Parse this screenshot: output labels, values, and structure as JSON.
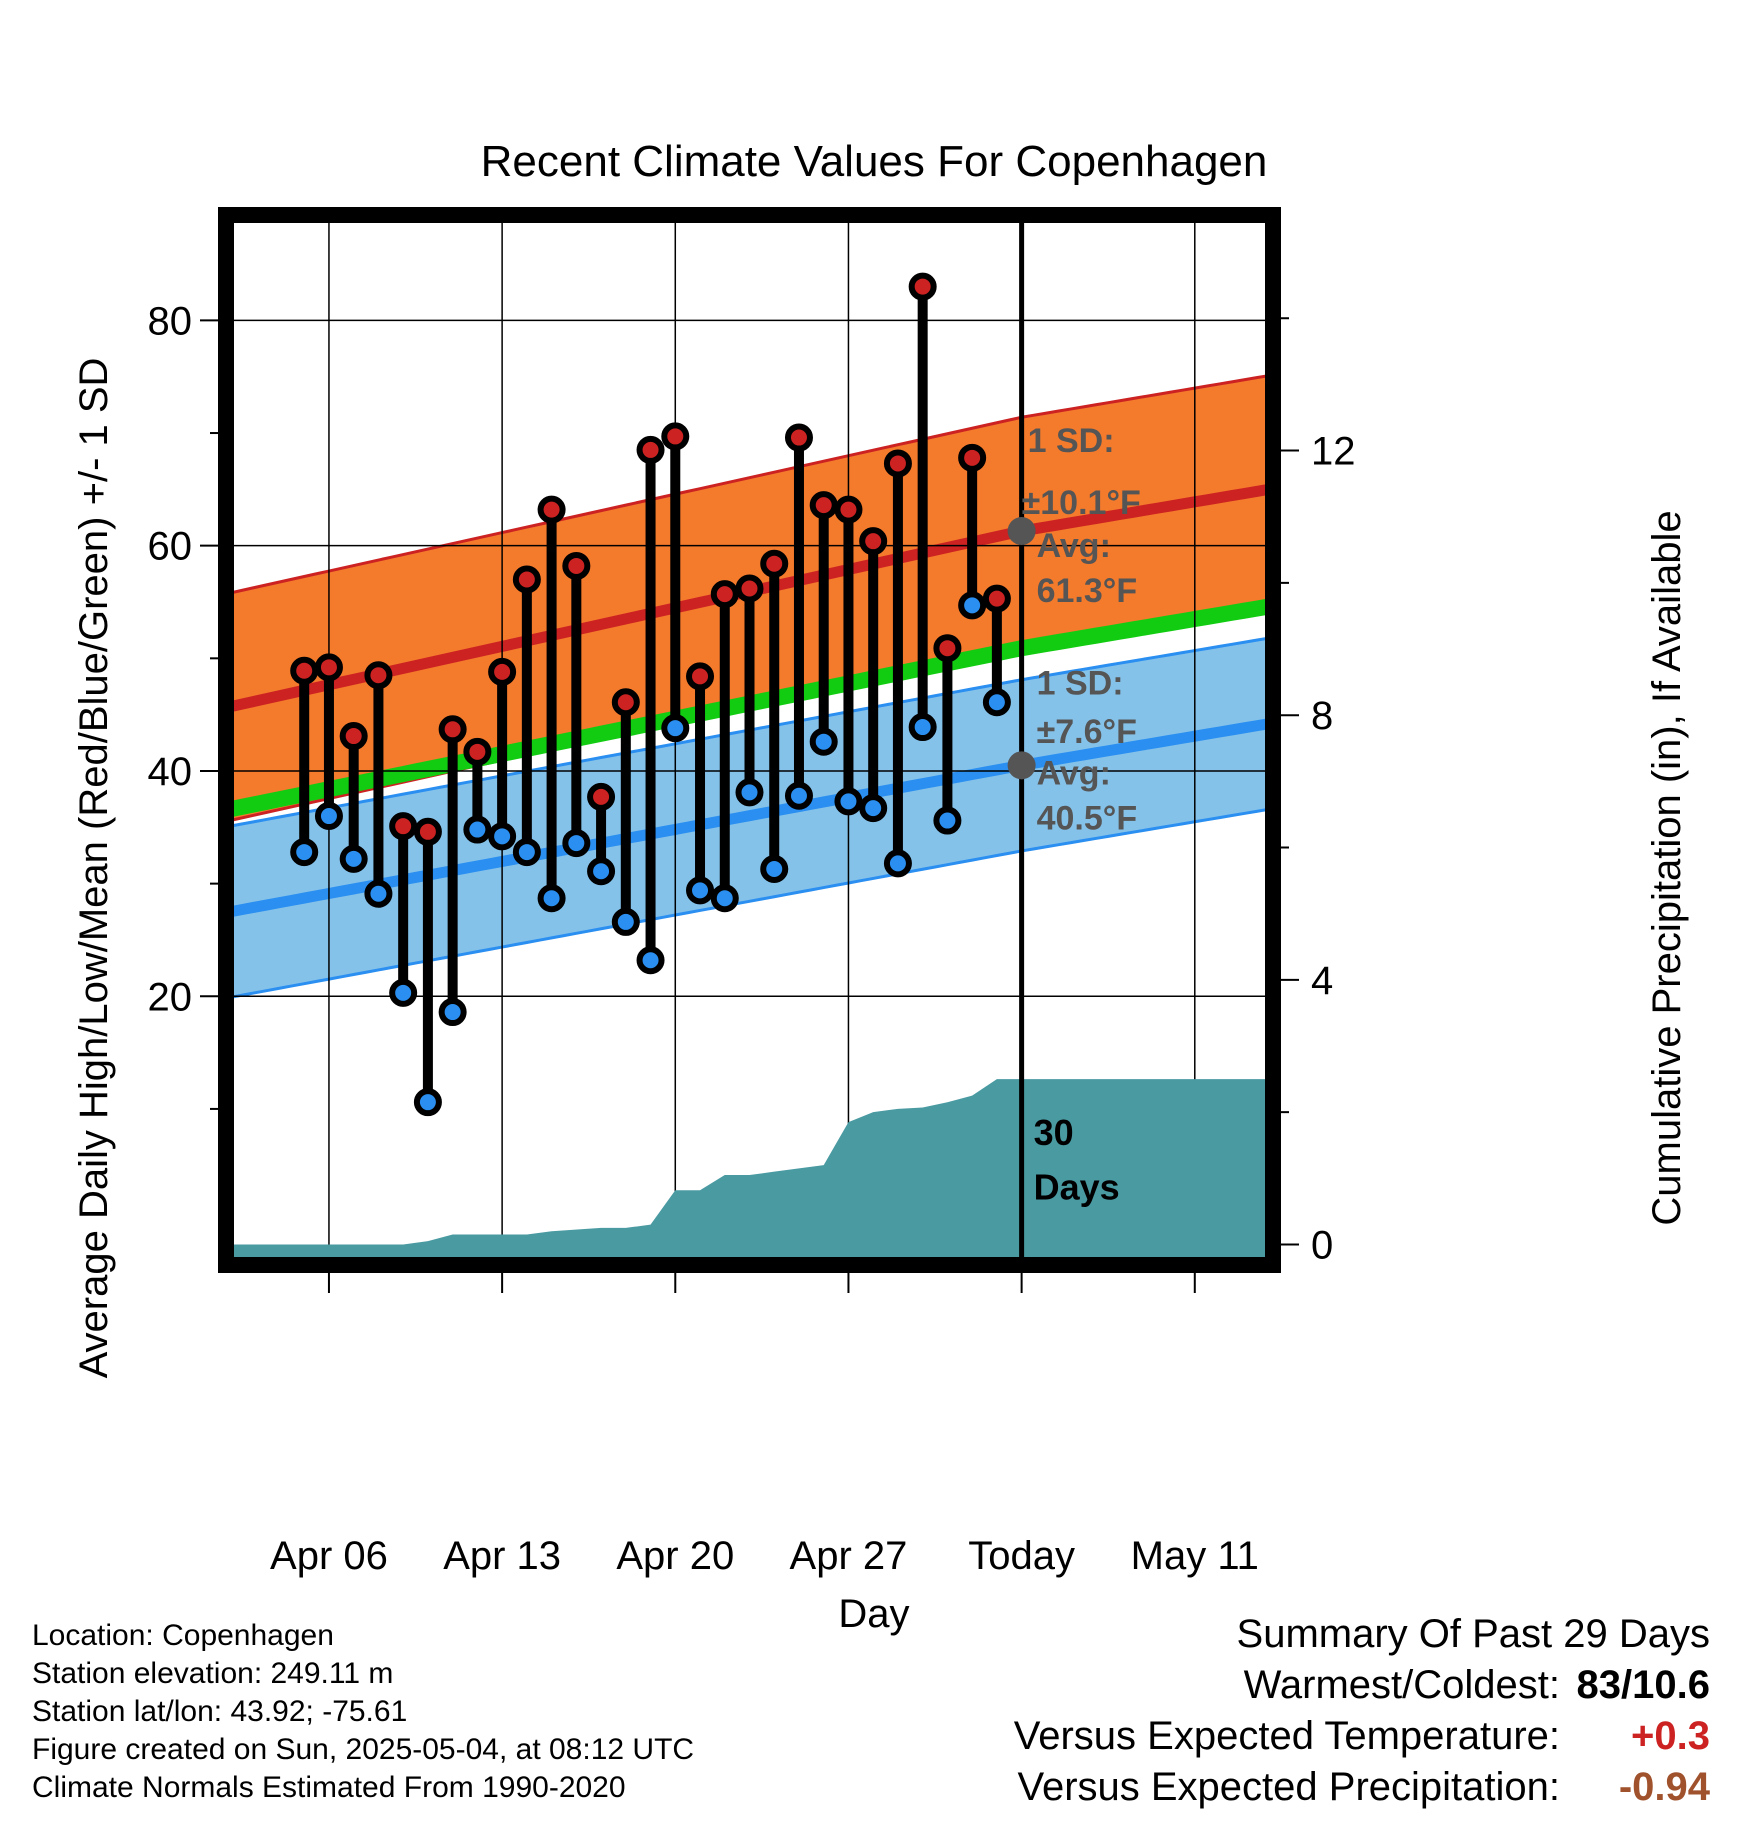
{
  "chart_data": {
    "type": "line",
    "title": "Recent Climate Values For Copenhagen",
    "xlabel": "Day",
    "ylabel": "Average Daily High/Low/Mean (Red/Blue/Green) +/- 1 SD",
    "y2label": "Cumulative Precipitation (in), If Available",
    "ylim": [
      -3.5,
      89
    ],
    "y2lim": [
      -0.25,
      15.5
    ],
    "x_ticks": [
      "Apr 06",
      "Apr 13",
      "Apr 20",
      "Apr 27",
      "Today",
      "May 11"
    ],
    "y_ticks": [
      20,
      40,
      60,
      80
    ],
    "y2_ticks": [
      0,
      4,
      8,
      12
    ],
    "days": [
      "Apr 05",
      "Apr 06",
      "Apr 07",
      "Apr 08",
      "Apr 09",
      "Apr 10",
      "Apr 11",
      "Apr 12",
      "Apr 13",
      "Apr 14",
      "Apr 15",
      "Apr 16",
      "Apr 17",
      "Apr 18",
      "Apr 19",
      "Apr 20",
      "Apr 21",
      "Apr 22",
      "Apr 23",
      "Apr 24",
      "Apr 25",
      "Apr 26",
      "Apr 27",
      "Apr 28",
      "Apr 29",
      "Apr 30",
      "May 01",
      "May 02",
      "May 03"
    ],
    "series": [
      {
        "name": "High",
        "color": "#cc2222",
        "values": [
          48.9,
          49.2,
          43.1,
          48.5,
          35.1,
          34.6,
          43.7,
          41.7,
          48.8,
          57.0,
          63.2,
          58.2,
          37.7,
          46.1,
          68.5,
          69.7,
          48.4,
          55.7,
          56.2,
          58.4,
          69.6,
          63.6,
          63.2,
          60.4,
          67.3,
          83.0,
          50.9,
          67.8,
          55.3
        ]
      },
      {
        "name": "Low",
        "color": "#2a8ff0",
        "values": [
          32.8,
          36.0,
          32.2,
          29.1,
          20.3,
          10.6,
          18.6,
          34.8,
          34.2,
          32.8,
          28.7,
          33.6,
          31.1,
          26.6,
          23.2,
          43.8,
          29.4,
          28.7,
          38.1,
          31.3,
          37.8,
          42.6,
          37.3,
          36.7,
          31.8,
          43.9,
          35.6,
          54.7,
          46.1
        ]
      }
    ],
    "normals": {
      "x": [
        "Apr 02",
        "Today",
        "May 14"
      ],
      "high_mean": [
        45.7,
        61.3,
        65.0
      ],
      "high_sd": 10.1,
      "low_mean": [
        27.5,
        40.5,
        44.2
      ],
      "low_sd": 7.6,
      "mean": [
        36.6,
        50.9,
        54.6
      ]
    },
    "precipitation": {
      "x": [
        "Apr 02",
        "Apr 07",
        "Apr 09",
        "Apr 10",
        "Apr 11",
        "Apr 14",
        "Apr 15",
        "Apr 17",
        "Apr 18",
        "Apr 19",
        "Apr 20",
        "Apr 21",
        "Apr 22",
        "Apr 23",
        "Apr 24",
        "Apr 25",
        "Apr 26",
        "Apr 27",
        "Apr 28",
        "Apr 29",
        "Apr 30",
        "May 01",
        "May 02",
        "May 03",
        "Today",
        "May 14"
      ],
      "values": [
        0.0,
        0.0,
        0.0,
        0.05,
        0.15,
        0.15,
        0.2,
        0.25,
        0.25,
        0.3,
        0.82,
        0.82,
        1.05,
        1.05,
        1.1,
        1.15,
        1.2,
        1.85,
        2.0,
        2.05,
        2.07,
        2.15,
        2.25,
        2.5,
        2.5,
        2.5
      ]
    },
    "annotations": {
      "high": [
        "1 SD:",
        "±10.1°F",
        "Avg:",
        "61.3°F"
      ],
      "low": [
        "1 SD:",
        "±7.6°F",
        "Avg:",
        "40.5°F"
      ],
      "period": [
        "30",
        "Days"
      ]
    },
    "colors": {
      "high_band": "#f47a2c",
      "high_line": "#cc2222",
      "low_band": "#85c2ea",
      "low_line": "#2a8ff0",
      "mean_line": "#11cc11",
      "precip": "#4a9aa2",
      "annotation": "#555555"
    },
    "grid": true
  },
  "info": {
    "location": "Location: Copenhagen",
    "elevation": "Station elevation: 249.11 m",
    "latlon": "Station lat/lon: 43.92; -75.61",
    "created": "Figure created on Sun, 2025-05-04, at 08:12 UTC",
    "normals": "Climate Normals Estimated From 1990-2020"
  },
  "summary": {
    "header": "Summary Of Past 29 Days",
    "warm_cold_label": "Warmest/Coldest:",
    "warm_cold_value": "83/10.6",
    "temp_label": "Versus Expected Temperature:",
    "temp_value": "+0.3",
    "temp_color": "#cc2222",
    "precip_label": "Versus Expected Precipitation:",
    "precip_value": "-0.94",
    "precip_color": "#a0522d"
  }
}
